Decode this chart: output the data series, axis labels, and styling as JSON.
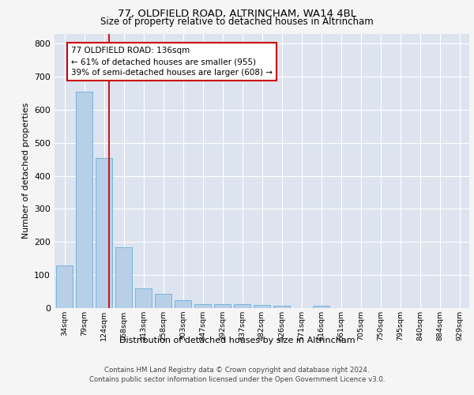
{
  "title1": "77, OLDFIELD ROAD, ALTRINCHAM, WA14 4BL",
  "title2": "Size of property relative to detached houses in Altrincham",
  "xlabel": "Distribution of detached houses by size in Altrincham",
  "ylabel": "Number of detached properties",
  "bar_labels": [
    "34sqm",
    "79sqm",
    "124sqm",
    "168sqm",
    "213sqm",
    "258sqm",
    "303sqm",
    "347sqm",
    "392sqm",
    "437sqm",
    "482sqm",
    "526sqm",
    "571sqm",
    "616sqm",
    "661sqm",
    "705sqm",
    "750sqm",
    "795sqm",
    "840sqm",
    "884sqm",
    "929sqm"
  ],
  "bar_values": [
    128,
    655,
    453,
    185,
    60,
    43,
    25,
    12,
    13,
    12,
    10,
    8,
    0,
    8,
    0,
    0,
    0,
    0,
    0,
    0,
    0
  ],
  "bar_color": "#b8cfe8",
  "bar_edge_color": "#6baed6",
  "highlight_line_color": "#cc0000",
  "annotation_text": "77 OLDFIELD ROAD: 136sqm\n← 61% of detached houses are smaller (955)\n39% of semi-detached houses are larger (608) →",
  "annotation_box_color": "#ffffff",
  "annotation_box_edge": "#cc0000",
  "ylim": [
    0,
    830
  ],
  "yticks": [
    0,
    100,
    200,
    300,
    400,
    500,
    600,
    700,
    800
  ],
  "background_color": "#dde4f0",
  "grid_color": "#ffffff",
  "fig_bg_color": "#f5f5f5",
  "footer1": "Contains HM Land Registry data © Crown copyright and database right 2024.",
  "footer2": "Contains public sector information licensed under the Open Government Licence v3.0."
}
